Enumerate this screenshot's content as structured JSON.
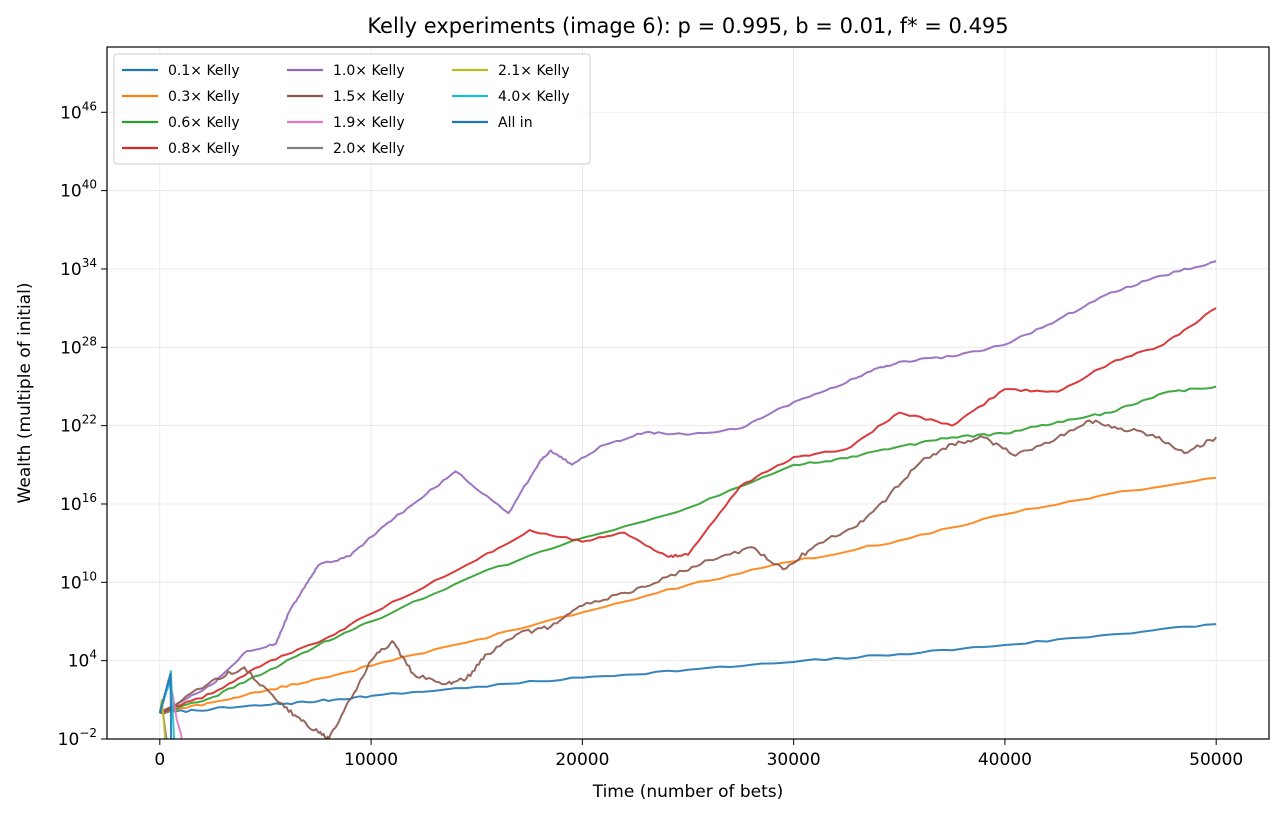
{
  "chart_data": {
    "type": "line",
    "title": "Kelly experiments (image 6): p = 0.995, b = 0.01, f* = 0.495",
    "xlabel": "Time (number of bets)",
    "ylabel": "Wealth (multiple of initial)",
    "xlim": [
      -2500,
      52500
    ],
    "x_ticks": [
      0,
      10000,
      20000,
      30000,
      40000,
      50000
    ],
    "y_scale": "log",
    "ylim_log10": [
      -2,
      51
    ],
    "y_ticks": [
      {
        "base": "10",
        "exp": "−2",
        "log10": -2
      },
      {
        "base": "10",
        "exp": "4",
        "log10": 4
      },
      {
        "base": "10",
        "exp": "10",
        "log10": 10
      },
      {
        "base": "10",
        "exp": "16",
        "log10": 16
      },
      {
        "base": "10",
        "exp": "22",
        "log10": 22
      },
      {
        "base": "10",
        "exp": "28",
        "log10": 28
      },
      {
        "base": "10",
        "exp": "34",
        "log10": 34
      },
      {
        "base": "10",
        "exp": "40",
        "log10": 40
      },
      {
        "base": "10",
        "exp": "46",
        "log10": 46
      }
    ],
    "grid": true,
    "legend_position": "top-left",
    "legend_columns": 3,
    "series": [
      {
        "name": "0.1× Kelly",
        "color": "#1f77b4",
        "x": [
          0,
          2500,
          5000,
          7500,
          10000,
          15000,
          20000,
          25000,
          30000,
          35000,
          40000,
          45000,
          50000
        ],
        "log10_y": [
          0,
          0.3,
          0.6,
          0.9,
          1.3,
          2.0,
          2.7,
          3.3,
          3.9,
          4.5,
          5.2,
          6.0,
          6.8
        ]
      },
      {
        "name": "0.3× Kelly",
        "color": "#ff7f0e",
        "x": [
          0,
          2500,
          5000,
          7500,
          10000,
          15000,
          20000,
          25000,
          30000,
          35000,
          40000,
          45000,
          50000
        ],
        "log10_y": [
          0,
          0.8,
          1.7,
          2.6,
          3.6,
          5.6,
          7.7,
          9.8,
          11.6,
          13.2,
          15.2,
          16.8,
          18.0
        ]
      },
      {
        "name": "0.6× Kelly",
        "color": "#2ca02c",
        "x": [
          0,
          2500,
          5000,
          7500,
          10000,
          15000,
          20000,
          25000,
          30000,
          32500,
          35000,
          37500,
          40000,
          42500,
          45000,
          47500,
          50000
        ],
        "log10_y": [
          0,
          1.2,
          3.1,
          5.2,
          7.0,
          10.6,
          13.4,
          15.7,
          19.0,
          19.5,
          20.4,
          21.1,
          21.4,
          22.3,
          23.0,
          24.5,
          25.0
        ]
      },
      {
        "name": "0.8× Kelly",
        "color": "#d62728",
        "x": [
          0,
          2500,
          5000,
          7500,
          10000,
          15000,
          17500,
          20000,
          22000,
          24000,
          25000,
          27500,
          30000,
          32500,
          35000,
          37500,
          40000,
          42500,
          45000,
          47500,
          50000
        ],
        "log10_y": [
          0,
          1.5,
          3.8,
          5.4,
          7.6,
          11.7,
          14.0,
          13.1,
          13.8,
          12.0,
          12.1,
          17.4,
          19.6,
          20.2,
          23.0,
          22.0,
          24.8,
          24.6,
          26.8,
          28.2,
          31.0
        ]
      },
      {
        "name": "1.0× Kelly",
        "color": "#9467bd",
        "x": [
          0,
          2500,
          4000,
          5500,
          6200,
          7000,
          7500,
          9000,
          10500,
          12000,
          14000,
          16500,
          18000,
          18500,
          19500,
          21000,
          23000,
          25000,
          27500,
          30000,
          32500,
          33500,
          35000,
          37500,
          40000,
          42500,
          45000,
          47500,
          50000
        ],
        "log10_y": [
          0,
          2.2,
          4.6,
          5.3,
          8.0,
          10.0,
          11.3,
          12.0,
          14.2,
          16.0,
          18.5,
          15.3,
          19.3,
          20.1,
          19.0,
          20.5,
          21.5,
          21.3,
          21.8,
          23.8,
          25.3,
          26.1,
          26.9,
          27.3,
          28.2,
          30.1,
          32.2,
          33.5,
          34.6
        ]
      },
      {
        "name": "1.5× Kelly",
        "color": "#8c564b",
        "x": [
          0,
          2500,
          4000,
          5500,
          6500,
          7500,
          8000,
          9000,
          10000,
          11000,
          12000,
          13500,
          14500,
          15500,
          17000,
          18500,
          20000,
          22000,
          24000,
          26000,
          28000,
          29500,
          31000,
          33000,
          34500,
          36000,
          37500,
          39000,
          40500,
          42500,
          44000,
          45500,
          47000,
          48500,
          50000
        ],
        "log10_y": [
          0,
          2.5,
          3.5,
          1.0,
          -0.3,
          -1.5,
          -2.0,
          1.0,
          4.0,
          5.5,
          3.0,
          2.2,
          2.6,
          4.5,
          6.1,
          6.6,
          8.2,
          9.2,
          10.4,
          11.7,
          12.7,
          11.0,
          12.8,
          14.3,
          16.6,
          19.2,
          20.6,
          21.1,
          19.7,
          21.1,
          22.4,
          21.8,
          21.3,
          19.9,
          21.1
        ]
      },
      {
        "name": "1.9× Kelly",
        "color": "#e377c2",
        "x": [
          0,
          200,
          400,
          600,
          800,
          1000,
          1100
        ],
        "log10_y": [
          0,
          1.0,
          2.5,
          1.5,
          -0.5,
          -1.6,
          -2.6
        ]
      },
      {
        "name": "2.0× Kelly",
        "color": "#7f7f7f",
        "x": [
          0,
          100,
          200,
          300,
          400
        ],
        "log10_y": [
          0,
          0.8,
          -0.6,
          -1.8,
          -3.0
        ]
      },
      {
        "name": "2.1× Kelly",
        "color": "#bcbd22",
        "x": [
          0,
          100,
          200,
          300
        ],
        "log10_y": [
          0,
          1.0,
          -0.8,
          -3.0
        ]
      },
      {
        "name": "4.0× Kelly",
        "color": "#17becf",
        "x": [
          0,
          150,
          300,
          450,
          520,
          600,
          700
        ],
        "log10_y": [
          0,
          0.8,
          1.6,
          2.2,
          3.2,
          0.5,
          -3.0
        ]
      },
      {
        "name": "All in",
        "color": "#1f77b4",
        "x": [
          0,
          100,
          200,
          300,
          400,
          500,
          520,
          540
        ],
        "log10_y": [
          0,
          0.6,
          1.2,
          1.8,
          2.4,
          3.0,
          1.0,
          -3.0
        ]
      }
    ]
  }
}
